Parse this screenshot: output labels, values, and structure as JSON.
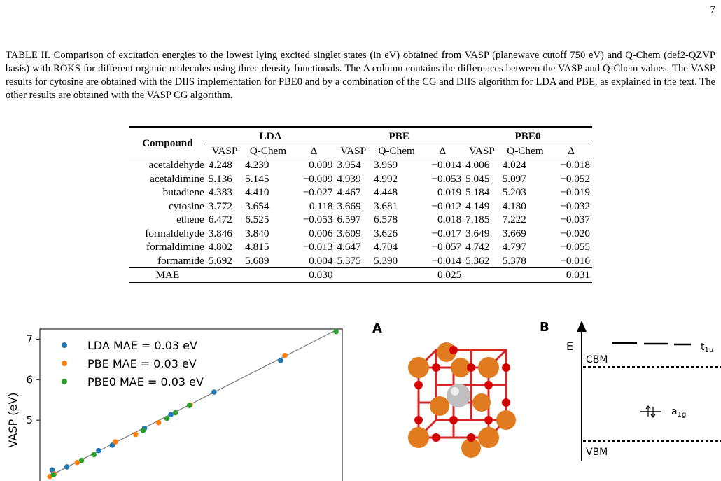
{
  "page_number": "7",
  "caption": {
    "label": "TABLE II.",
    "text": "Comparison of excitation energies to the lowest lying excited singlet states (in eV) obtained from VASP (planewave cutoff 750 eV) and Q-Chem (def2-QZVP basis) with ROKS for different organic molecules using three density functionals. The Δ column contains the differences between the VASP and Q-Chem values. The VASP results for cytosine are obtained with the DIIS implementation for PBE0 and by a combination of the CG and DIIS algorithm for LDA and PBE, as explained in the text. The other results are obtained with the VASP CG algorithm."
  },
  "table": {
    "compound_header": "Compound",
    "groups": [
      "LDA",
      "PBE",
      "PBE0"
    ],
    "subheaders": [
      "VASP",
      "Q-Chem",
      "Δ"
    ],
    "rows": [
      {
        "name": "acetaldehyde",
        "v": [
          "4.248",
          "4.239",
          "0.009",
          "3.954",
          "3.969",
          "−0.014",
          "4.006",
          "4.024",
          "−0.018"
        ]
      },
      {
        "name": "acetaldimine",
        "v": [
          "5.136",
          "5.145",
          "−0.009",
          "4.939",
          "4.992",
          "−0.053",
          "5.045",
          "5.097",
          "−0.052"
        ]
      },
      {
        "name": "butadiene",
        "v": [
          "4.383",
          "4.410",
          "−0.027",
          "4.467",
          "4.448",
          "0.019",
          "5.184",
          "5.203",
          "−0.019"
        ]
      },
      {
        "name": "cytosine",
        "v": [
          "3.772",
          "3.654",
          "0.118",
          "3.669",
          "3.681",
          "−0.012",
          "4.149",
          "4.180",
          "−0.032"
        ]
      },
      {
        "name": "ethene",
        "v": [
          "6.472",
          "6.525",
          "−0.053",
          "6.597",
          "6.578",
          "0.018",
          "7.185",
          "7.222",
          "−0.037"
        ]
      },
      {
        "name": "formaldehyde",
        "v": [
          "3.846",
          "3.840",
          "0.006",
          "3.609",
          "3.626",
          "−0.017",
          "3.649",
          "3.669",
          "−0.020"
        ]
      },
      {
        "name": "formaldimine",
        "v": [
          "4.802",
          "4.815",
          "−0.013",
          "4.647",
          "4.704",
          "−0.057",
          "4.742",
          "4.797",
          "−0.055"
        ]
      },
      {
        "name": "formamide",
        "v": [
          "5.692",
          "5.689",
          "0.004",
          "5.375",
          "5.390",
          "−0.014",
          "5.362",
          "5.378",
          "−0.016"
        ]
      }
    ],
    "mae_label": "MAE",
    "mae": [
      "0.030",
      "0.025",
      "0.031"
    ]
  },
  "chart_data": {
    "type": "scatter",
    "ylabel": "VASP (eV)",
    "y_ticks": [
      "5",
      "6",
      "7"
    ],
    "series": [
      {
        "name": "LDA MAE = 0.03 eV",
        "color": "#1f77b4",
        "x": [
          4.239,
          5.145,
          4.41,
          3.654,
          6.525,
          3.84,
          4.815,
          5.689
        ],
        "y": [
          4.248,
          5.136,
          4.383,
          3.772,
          6.472,
          3.846,
          4.802,
          5.692
        ]
      },
      {
        "name": "PBE MAE = 0.03 eV",
        "color": "#ff7f0e",
        "x": [
          3.969,
          4.992,
          4.448,
          3.681,
          6.578,
          3.626,
          4.704,
          5.39
        ],
        "y": [
          3.954,
          4.939,
          4.467,
          3.669,
          6.597,
          3.609,
          4.647,
          5.375
        ]
      },
      {
        "name": "PBE0 MAE = 0.03 eV",
        "color": "#2ca02c",
        "x": [
          4.024,
          5.097,
          5.203,
          4.18,
          7.222,
          3.669,
          4.797,
          5.378
        ],
        "y": [
          4.006,
          5.045,
          5.184,
          4.149,
          7.185,
          3.649,
          4.742,
          5.362
        ]
      }
    ],
    "ylim": [
      3.5,
      7.3
    ],
    "xlim": [
      3.5,
      7.3
    ],
    "diagonal_line_color": "#808080"
  },
  "panel_a": {
    "label": "A"
  },
  "panel_b": {
    "label": "B",
    "energy_label": "E",
    "cbm": "CBM",
    "vbm": "VBM",
    "t1u": "t",
    "t1u_sub": "1u",
    "a1g": "a",
    "a1g_sub": "1g"
  }
}
